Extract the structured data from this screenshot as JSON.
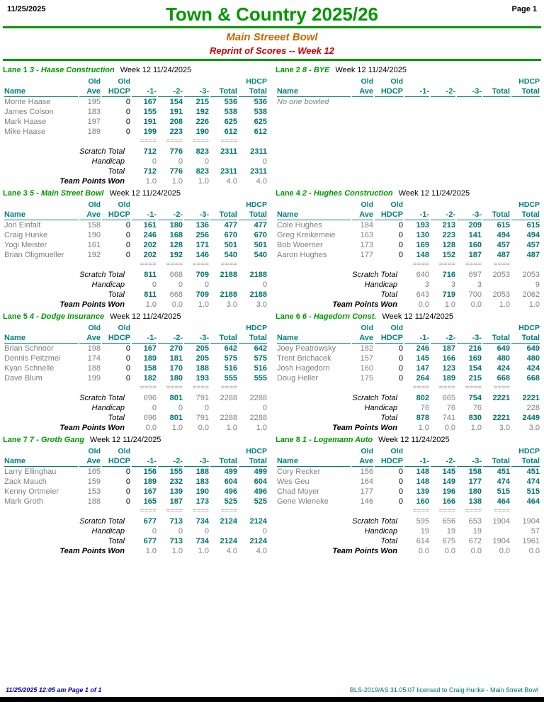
{
  "header": {
    "date": "11/25/2025",
    "title": "Town & Country 2025/26",
    "page": "Page 1",
    "center_name": "Main Streeet Bowl",
    "subtitle": "Reprint of Scores -- Week 12"
  },
  "table": {
    "col_top": [
      "",
      "Old",
      "Old",
      "",
      "",
      "",
      "",
      "HDCP"
    ],
    "col_headers": [
      "Name",
      "Ave",
      "HDCP",
      "-1-",
      "-2-",
      "-3-",
      "Total",
      "Total"
    ],
    "separator": "====",
    "row_labels": {
      "scratch": "Scratch Total",
      "handicap": "Handicap",
      "total": "Total",
      "points": "Team Points Won"
    }
  },
  "colors": {
    "title_green": "#009900",
    "house_orange": "#CC6600",
    "subtitle_red": "#CC0000",
    "header_teal": "#008080",
    "score_teal": "#007272",
    "muted_gray": "#808080",
    "footer_blue": "#0000BB"
  },
  "lanes": [
    {
      "lane": "Lane 1",
      "team": "3 - Haase Construction",
      "week": "Week 12  11/24/2025",
      "players": [
        {
          "name": "Monte Haase",
          "ave": "195",
          "hdcp": "0",
          "scores": [
            "167",
            "154",
            "215",
            "536",
            "536"
          ]
        },
        {
          "name": "James Colson",
          "ave": "183",
          "hdcp": "0",
          "scores": [
            "155",
            "191",
            "192",
            "538",
            "538"
          ]
        },
        {
          "name": "Mark Haase",
          "ave": "197",
          "hdcp": "0",
          "scores": [
            "191",
            "208",
            "226",
            "625",
            "625"
          ]
        },
        {
          "name": "Mike Haase",
          "ave": "189",
          "hdcp": "0",
          "scores": [
            "199",
            "223",
            "190",
            "612",
            "612"
          ]
        }
      ],
      "scratch": {
        "values": [
          "712",
          "776",
          "823",
          "2311",
          "2311"
        ],
        "bold": [
          true,
          true,
          true,
          true,
          true
        ]
      },
      "handicap": {
        "values": [
          "0",
          "0",
          "0",
          "",
          "0"
        ]
      },
      "total": {
        "values": [
          "712",
          "776",
          "823",
          "2311",
          "2311"
        ],
        "bold": [
          true,
          true,
          true,
          true,
          true
        ]
      },
      "points": {
        "values": [
          "1.0",
          "1.0",
          "1.0",
          "4.0",
          "4.0"
        ]
      }
    },
    {
      "lane": "Lane 2",
      "team": "8 - BYE",
      "week": "Week 12  11/24/2025",
      "bye": true,
      "bye_text": "No one bowled"
    },
    {
      "lane": "Lane 3",
      "team": "5 - Main Street Bowl",
      "week": "Week 12  11/24/2025",
      "players": [
        {
          "name": "Jon Einfalt",
          "ave": "158",
          "hdcp": "0",
          "scores": [
            "161",
            "180",
            "136",
            "477",
            "477"
          ]
        },
        {
          "name": "Craig Hunke",
          "ave": "190",
          "hdcp": "0",
          "scores": [
            "246",
            "168",
            "256",
            "670",
            "670"
          ]
        },
        {
          "name": "Yogi Meister",
          "ave": "161",
          "hdcp": "0",
          "scores": [
            "202",
            "128",
            "171",
            "501",
            "501"
          ]
        },
        {
          "name": "Brian Oligmueller",
          "ave": "192",
          "hdcp": "0",
          "scores": [
            "202",
            "192",
            "146",
            "540",
            "540"
          ]
        }
      ],
      "scratch": {
        "values": [
          "811",
          "668",
          "709",
          "2188",
          "2188"
        ],
        "bold": [
          true,
          false,
          true,
          true,
          true
        ]
      },
      "handicap": {
        "values": [
          "0",
          "0",
          "0",
          "",
          "0"
        ]
      },
      "total": {
        "values": [
          "811",
          "668",
          "709",
          "2188",
          "2188"
        ],
        "bold": [
          true,
          false,
          true,
          true,
          true
        ]
      },
      "points": {
        "values": [
          "1.0",
          "0.0",
          "1.0",
          "3.0",
          "3.0"
        ]
      }
    },
    {
      "lane": "Lane 4",
      "team": "2 - Hughes Construction",
      "week": "Week 12  11/24/2025",
      "players": [
        {
          "name": "Cole Hughes",
          "ave": "184",
          "hdcp": "0",
          "scores": [
            "193",
            "213",
            "209",
            "615",
            "615"
          ]
        },
        {
          "name": "Greg Kreikemeie",
          "ave": "163",
          "hdcp": "0",
          "scores": [
            "130",
            "223",
            "141",
            "494",
            "494"
          ]
        },
        {
          "name": "Bob Woerner",
          "ave": "173",
          "hdcp": "0",
          "scores": [
            "169",
            "128",
            "160",
            "457",
            "457"
          ]
        },
        {
          "name": "Aaron Hughes",
          "ave": "177",
          "hdcp": "0",
          "scores": [
            "148",
            "152",
            "187",
            "487",
            "487"
          ]
        }
      ],
      "scratch": {
        "values": [
          "640",
          "716",
          "697",
          "2053",
          "2053"
        ],
        "bold": [
          false,
          true,
          false,
          false,
          false
        ]
      },
      "handicap": {
        "values": [
          "3",
          "3",
          "3",
          "",
          "9"
        ]
      },
      "total": {
        "values": [
          "643",
          "719",
          "700",
          "2053",
          "2062"
        ],
        "bold": [
          false,
          true,
          false,
          false,
          false
        ]
      },
      "points": {
        "values": [
          "0.0",
          "1.0",
          "0.0",
          "1.0",
          "1.0"
        ]
      }
    },
    {
      "lane": "Lane 5",
      "team": "4 - Dodge Insurance",
      "week": "Week 12  11/24/2025",
      "players": [
        {
          "name": "Brian Schnoor",
          "ave": "198",
          "hdcp": "0",
          "scores": [
            "167",
            "270",
            "205",
            "642",
            "642"
          ]
        },
        {
          "name": "Dennis Peitzmei",
          "ave": "174",
          "hdcp": "0",
          "scores": [
            "189",
            "181",
            "205",
            "575",
            "575"
          ]
        },
        {
          "name": "Kyan Schnelle",
          "ave": "188",
          "hdcp": "0",
          "scores": [
            "158",
            "170",
            "188",
            "516",
            "516"
          ]
        },
        {
          "name": "Dave Blum",
          "ave": "199",
          "hdcp": "0",
          "scores": [
            "182",
            "180",
            "193",
            "555",
            "555"
          ]
        }
      ],
      "scratch": {
        "values": [
          "696",
          "801",
          "791",
          "2288",
          "2288"
        ],
        "bold": [
          false,
          true,
          false,
          false,
          false
        ]
      },
      "handicap": {
        "values": [
          "0",
          "0",
          "0",
          "",
          "0"
        ]
      },
      "total": {
        "values": [
          "696",
          "801",
          "791",
          "2288",
          "2288"
        ],
        "bold": [
          false,
          true,
          false,
          false,
          false
        ]
      },
      "points": {
        "values": [
          "0.0",
          "1.0",
          "0.0",
          "1.0",
          "1.0"
        ]
      }
    },
    {
      "lane": "Lane 6",
      "team": "6 - Hagedorn Const.",
      "week": "Week 12  11/24/2025",
      "players": [
        {
          "name": "Joey Peatrowsky",
          "ave": "182",
          "hdcp": "0",
          "scores": [
            "246",
            "187",
            "216",
            "649",
            "649"
          ]
        },
        {
          "name": "Trent Brichacek",
          "ave": "157",
          "hdcp": "0",
          "scores": [
            "145",
            "166",
            "169",
            "480",
            "480"
          ]
        },
        {
          "name": "Josh Hagedorn",
          "ave": "160",
          "hdcp": "0",
          "scores": [
            "147",
            "123",
            "154",
            "424",
            "424"
          ]
        },
        {
          "name": "Doug Heller",
          "ave": "175",
          "hdcp": "0",
          "scores": [
            "264",
            "189",
            "215",
            "668",
            "668"
          ]
        }
      ],
      "scratch": {
        "values": [
          "802",
          "665",
          "754",
          "2221",
          "2221"
        ],
        "bold": [
          true,
          false,
          true,
          true,
          true
        ]
      },
      "handicap": {
        "values": [
          "76",
          "76",
          "76",
          "",
          "228"
        ]
      },
      "total": {
        "values": [
          "878",
          "741",
          "830",
          "2221",
          "2449"
        ],
        "bold": [
          true,
          false,
          true,
          true,
          true
        ]
      },
      "points": {
        "values": [
          "1.0",
          "0.0",
          "1.0",
          "3.0",
          "3.0"
        ]
      }
    },
    {
      "lane": "Lane 7",
      "team": "7 - Groth Gang",
      "week": "Week 12  11/24/2025",
      "players": [
        {
          "name": "Larry Ellinghau",
          "ave": "165",
          "hdcp": "0",
          "scores": [
            "156",
            "155",
            "188",
            "499",
            "499"
          ]
        },
        {
          "name": "Zack Mauch",
          "ave": "159",
          "hdcp": "0",
          "scores": [
            "189",
            "232",
            "183",
            "604",
            "604"
          ]
        },
        {
          "name": "Kenny Ortmeier",
          "ave": "153",
          "hdcp": "0",
          "scores": [
            "167",
            "139",
            "190",
            "496",
            "496"
          ]
        },
        {
          "name": "Mark Groth",
          "ave": "188",
          "hdcp": "0",
          "scores": [
            "165",
            "187",
            "173",
            "525",
            "525"
          ]
        }
      ],
      "scratch": {
        "values": [
          "677",
          "713",
          "734",
          "2124",
          "2124"
        ],
        "bold": [
          true,
          true,
          true,
          true,
          true
        ]
      },
      "handicap": {
        "values": [
          "0",
          "0",
          "0",
          "",
          "0"
        ]
      },
      "total": {
        "values": [
          "677",
          "713",
          "734",
          "2124",
          "2124"
        ],
        "bold": [
          true,
          true,
          true,
          true,
          true
        ]
      },
      "points": {
        "values": [
          "1.0",
          "1.0",
          "1.0",
          "4.0",
          "4.0"
        ]
      }
    },
    {
      "lane": "Lane 8",
      "team": "1 - Logemann Auto",
      "week": "Week 12  11/24/2025",
      "players": [
        {
          "name": "Cory Recker",
          "ave": "156",
          "hdcp": "0",
          "scores": [
            "148",
            "145",
            "158",
            "451",
            "451"
          ]
        },
        {
          "name": "Wes Geu",
          "ave": "164",
          "hdcp": "0",
          "scores": [
            "148",
            "149",
            "177",
            "474",
            "474"
          ]
        },
        {
          "name": "Chad Moyer",
          "ave": "177",
          "hdcp": "0",
          "scores": [
            "139",
            "196",
            "180",
            "515",
            "515"
          ]
        },
        {
          "name": "Gene Wieneke",
          "ave": "146",
          "hdcp": "0",
          "scores": [
            "160",
            "166",
            "138",
            "464",
            "464"
          ]
        }
      ],
      "scratch": {
        "values": [
          "595",
          "656",
          "653",
          "1904",
          "1904"
        ],
        "bold": [
          false,
          false,
          false,
          false,
          false
        ]
      },
      "handicap": {
        "values": [
          "19",
          "19",
          "19",
          "",
          "57"
        ]
      },
      "total": {
        "values": [
          "614",
          "675",
          "672",
          "1904",
          "1961"
        ],
        "bold": [
          false,
          false,
          false,
          false,
          false
        ]
      },
      "points": {
        "values": [
          "0.0",
          "0.0",
          "0.0",
          "0.0",
          "0.0"
        ]
      }
    }
  ],
  "footer": {
    "left": "11/25/2025  12:05 am  Page 1 of 1",
    "right": "BLS-2019/AS 31.05.07 licensed to Craig Hunke - Main Street Bowl"
  }
}
